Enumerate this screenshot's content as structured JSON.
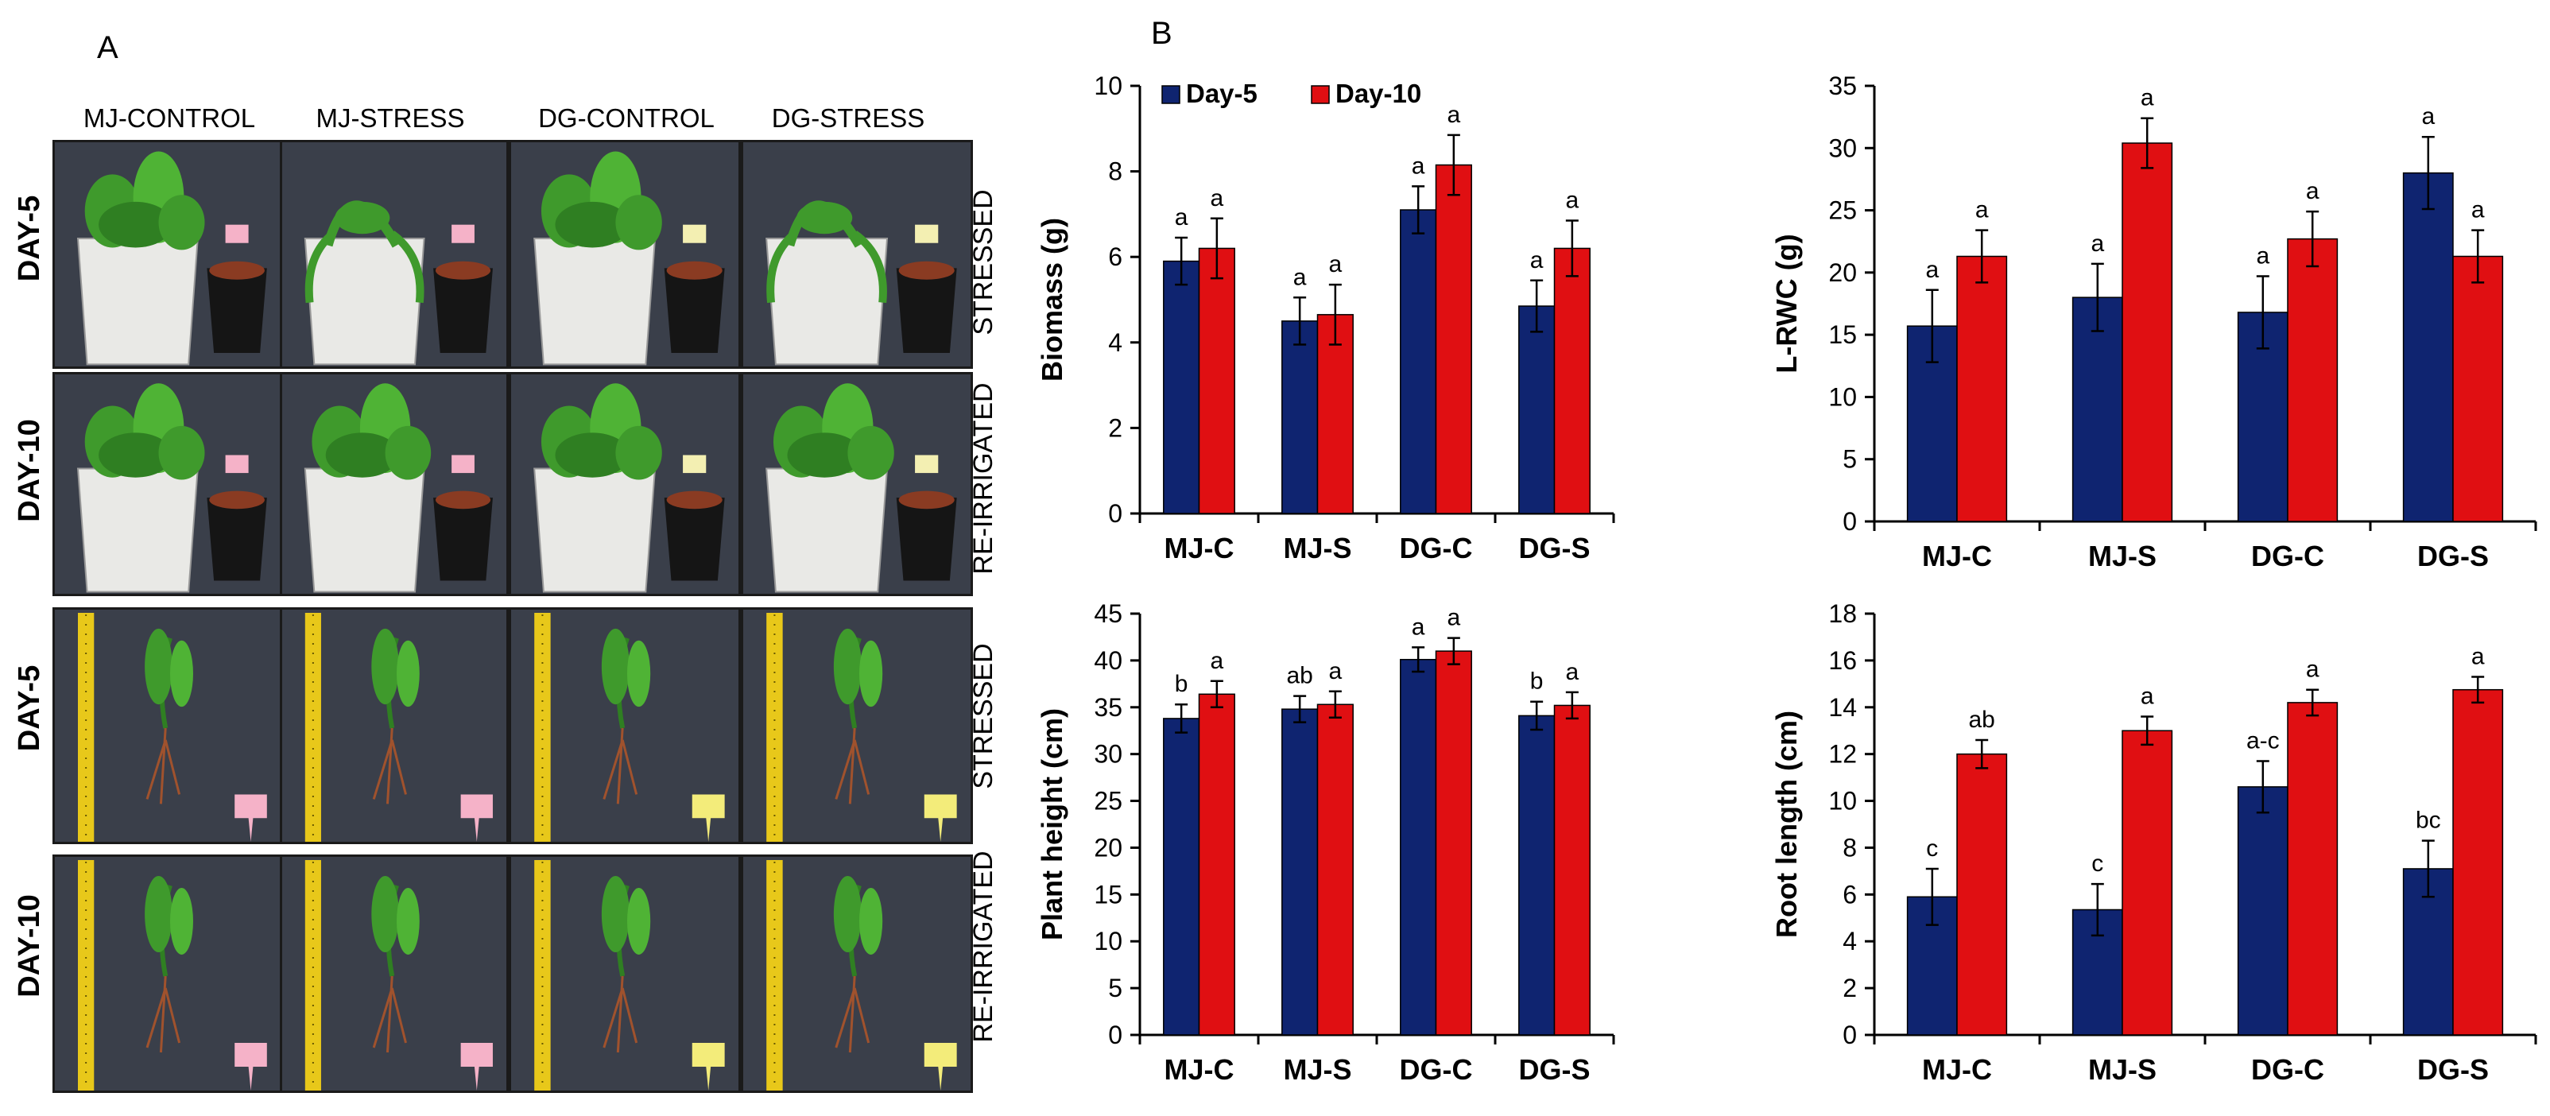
{
  "panel_labels": {
    "a": "A",
    "b": "B"
  },
  "photo_panel": {
    "columns": [
      "MJ-CONTROL",
      "MJ-STRESS",
      "DG-CONTROL",
      "DG-STRESS"
    ],
    "rows": [
      {
        "day": "DAY-5",
        "treatment": "STRESSED",
        "kind": "potted"
      },
      {
        "day": "DAY-10",
        "treatment": "RE-IRRIGATED",
        "kind": "potted"
      },
      {
        "day": "DAY-5",
        "treatment": "STRESSED",
        "kind": "uprooted"
      },
      {
        "day": "DAY-10",
        "treatment": "RE-IRRIGATED",
        "kind": "uprooted"
      }
    ]
  },
  "colors": {
    "day5": "#0f2470",
    "day10": "#e00f12",
    "photo_bg": "#3a3f4a",
    "leaf": "#3f9a2c",
    "ruler": "#e8c81a",
    "root": "#a0522d"
  },
  "chart_data": [
    {
      "type": "bar",
      "ylabel": "Biomass (g)",
      "ylim": [
        0,
        10
      ],
      "yticks": [
        0,
        2,
        4,
        6,
        8,
        10
      ],
      "categories": [
        "MJ-C",
        "MJ-S",
        "DG-C",
        "DG-S"
      ],
      "legend": true,
      "series": [
        {
          "name": "Day-5",
          "values": [
            5.9,
            4.5,
            7.1,
            4.85
          ],
          "errors": [
            0.55,
            0.55,
            0.55,
            0.6
          ],
          "sig": [
            "a",
            "a",
            "a",
            "a"
          ]
        },
        {
          "name": "Day-10",
          "values": [
            6.2,
            4.65,
            8.15,
            6.2
          ],
          "errors": [
            0.7,
            0.7,
            0.7,
            0.65
          ],
          "sig": [
            "a",
            "a",
            "a",
            "a"
          ]
        }
      ]
    },
    {
      "type": "bar",
      "ylabel": "L-RWC (g)",
      "ylim": [
        0,
        35
      ],
      "yticks": [
        0,
        5,
        10,
        15,
        20,
        25,
        30,
        35
      ],
      "categories": [
        "MJ-C",
        "MJ-S",
        "DG-C",
        "DG-S"
      ],
      "legend": false,
      "series": [
        {
          "name": "Day-5",
          "values": [
            15.7,
            18.0,
            16.8,
            28.0
          ],
          "errors": [
            2.9,
            2.7,
            2.9,
            2.9
          ],
          "sig": [
            "a",
            "a",
            "a",
            "a"
          ]
        },
        {
          "name": "Day-10",
          "values": [
            21.3,
            30.4,
            22.7,
            21.3
          ],
          "errors": [
            2.1,
            2.0,
            2.2,
            2.1
          ],
          "sig": [
            "a",
            "a",
            "a",
            "a"
          ]
        }
      ]
    },
    {
      "type": "bar",
      "ylabel": "Plant height (cm)",
      "ylim": [
        0,
        45
      ],
      "yticks": [
        0,
        5,
        10,
        15,
        20,
        25,
        30,
        35,
        40,
        45
      ],
      "categories": [
        "MJ-C",
        "MJ-S",
        "DG-C",
        "DG-S"
      ],
      "legend": false,
      "series": [
        {
          "name": "Day-5",
          "values": [
            33.8,
            34.8,
            40.1,
            34.1
          ],
          "errors": [
            1.5,
            1.4,
            1.3,
            1.5
          ],
          "sig": [
            "b",
            "ab",
            "a",
            "b"
          ]
        },
        {
          "name": "Day-10",
          "values": [
            36.4,
            35.3,
            41.0,
            35.2
          ],
          "errors": [
            1.4,
            1.4,
            1.4,
            1.4
          ],
          "sig": [
            "a",
            "a",
            "a",
            "a"
          ]
        }
      ]
    },
    {
      "type": "bar",
      "ylabel": "Root length (cm)",
      "ylim": [
        0,
        18
      ],
      "yticks": [
        0,
        2,
        4,
        6,
        8,
        10,
        12,
        14,
        16,
        18
      ],
      "categories": [
        "MJ-C",
        "MJ-S",
        "DG-C",
        "DG-S"
      ],
      "legend": false,
      "series": [
        {
          "name": "Day-5",
          "values": [
            5.9,
            5.35,
            10.6,
            7.1
          ],
          "errors": [
            1.2,
            1.1,
            1.1,
            1.2
          ],
          "sig": [
            "c",
            "c",
            "a-c",
            "bc"
          ]
        },
        {
          "name": "Day-10",
          "values": [
            12.0,
            13.0,
            14.2,
            14.75
          ],
          "errors": [
            0.6,
            0.6,
            0.55,
            0.55
          ],
          "sig": [
            "ab",
            "a",
            "a",
            "a"
          ]
        }
      ]
    }
  ]
}
